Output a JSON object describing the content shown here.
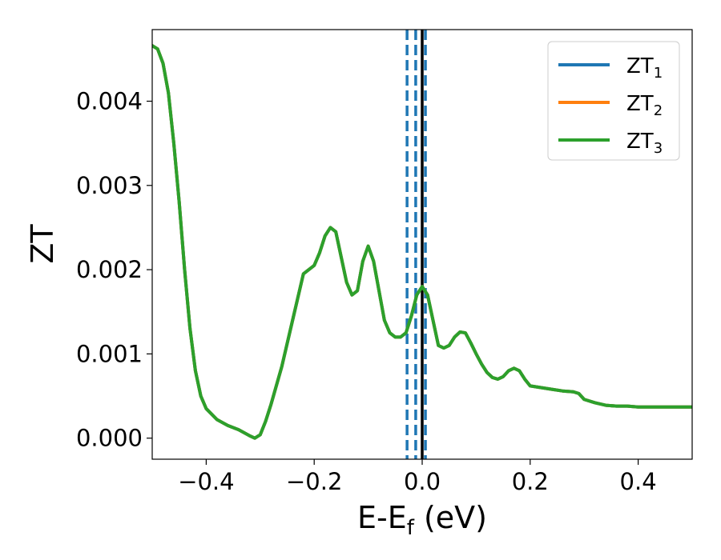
{
  "chart_data": {
    "type": "line",
    "title": "",
    "xlabel": {
      "main": "E-E",
      "sub": "f",
      "unit": " (eV)"
    },
    "ylabel": "ZT",
    "xlim": [
      -0.5,
      0.5
    ],
    "ylim": [
      -0.00025,
      0.00485
    ],
    "xticks": [
      -0.4,
      -0.2,
      0.0,
      0.2,
      0.4
    ],
    "xtick_labels": [
      "−0.4",
      "−0.2",
      "0.0",
      "0.2",
      "0.4"
    ],
    "yticks": [
      0.0,
      0.001,
      0.002,
      0.003,
      0.004
    ],
    "ytick_labels": [
      "0.000",
      "0.001",
      "0.002",
      "0.003",
      "0.004"
    ],
    "grid": false,
    "legend_position": "top-right",
    "x": [
      -0.5,
      -0.49,
      -0.48,
      -0.47,
      -0.46,
      -0.45,
      -0.44,
      -0.43,
      -0.42,
      -0.41,
      -0.4,
      -0.38,
      -0.36,
      -0.34,
      -0.32,
      -0.31,
      -0.3,
      -0.29,
      -0.28,
      -0.26,
      -0.24,
      -0.22,
      -0.21,
      -0.2,
      -0.19,
      -0.18,
      -0.17,
      -0.16,
      -0.15,
      -0.14,
      -0.13,
      -0.12,
      -0.11,
      -0.1,
      -0.09,
      -0.08,
      -0.07,
      -0.06,
      -0.05,
      -0.04,
      -0.03,
      -0.02,
      -0.01,
      0.0,
      0.01,
      0.02,
      0.03,
      0.04,
      0.05,
      0.06,
      0.07,
      0.08,
      0.09,
      0.1,
      0.11,
      0.12,
      0.13,
      0.14,
      0.15,
      0.16,
      0.17,
      0.18,
      0.19,
      0.2,
      0.22,
      0.24,
      0.26,
      0.28,
      0.29,
      0.3,
      0.32,
      0.34,
      0.36,
      0.38,
      0.4,
      0.42,
      0.44,
      0.46,
      0.48,
      0.5
    ],
    "series": [
      {
        "name": "ZT",
        "sub": "1",
        "color": "#1f77b4",
        "values": [
          0.00466,
          0.00462,
          0.00445,
          0.0041,
          0.0035,
          0.0028,
          0.002,
          0.0013,
          0.0008,
          0.0005,
          0.00035,
          0.00022,
          0.00015,
          0.0001,
          3e-05,
          0.0,
          4e-05,
          0.0002,
          0.0004,
          0.00085,
          0.0014,
          0.00195,
          0.002,
          0.00205,
          0.0022,
          0.0024,
          0.0025,
          0.00245,
          0.00215,
          0.00185,
          0.0017,
          0.00175,
          0.0021,
          0.00228,
          0.0021,
          0.00175,
          0.0014,
          0.00125,
          0.0012,
          0.0012,
          0.00125,
          0.00145,
          0.0017,
          0.0018,
          0.0017,
          0.0014,
          0.0011,
          0.00107,
          0.0011,
          0.0012,
          0.00126,
          0.00125,
          0.00113,
          0.001,
          0.00088,
          0.00078,
          0.00072,
          0.0007,
          0.00073,
          0.0008,
          0.00083,
          0.0008,
          0.0007,
          0.00062,
          0.0006,
          0.00058,
          0.00056,
          0.00055,
          0.00053,
          0.00046,
          0.00042,
          0.00039,
          0.00038,
          0.00038,
          0.00037,
          0.00037,
          0.00037,
          0.00037,
          0.00037,
          0.00037
        ]
      },
      {
        "name": "ZT",
        "sub": "2",
        "color": "#ff7f0e",
        "values": [
          0.00466,
          0.00462,
          0.00445,
          0.0041,
          0.0035,
          0.0028,
          0.002,
          0.0013,
          0.0008,
          0.0005,
          0.00035,
          0.00022,
          0.00015,
          0.0001,
          3e-05,
          0.0,
          4e-05,
          0.0002,
          0.0004,
          0.00085,
          0.0014,
          0.00195,
          0.002,
          0.00205,
          0.0022,
          0.0024,
          0.0025,
          0.00245,
          0.00215,
          0.00185,
          0.0017,
          0.00175,
          0.0021,
          0.00228,
          0.0021,
          0.00175,
          0.0014,
          0.00125,
          0.0012,
          0.0012,
          0.00125,
          0.00145,
          0.0017,
          0.0018,
          0.0017,
          0.0014,
          0.0011,
          0.00107,
          0.0011,
          0.0012,
          0.00126,
          0.00125,
          0.00113,
          0.001,
          0.00088,
          0.00078,
          0.00072,
          0.0007,
          0.00073,
          0.0008,
          0.00083,
          0.0008,
          0.0007,
          0.00062,
          0.0006,
          0.00058,
          0.00056,
          0.00055,
          0.00053,
          0.00046,
          0.00042,
          0.00039,
          0.00038,
          0.00038,
          0.00037,
          0.00037,
          0.00037,
          0.00037,
          0.00037,
          0.00037
        ]
      },
      {
        "name": "ZT",
        "sub": "3",
        "color": "#2ca02c",
        "values": [
          0.00466,
          0.00462,
          0.00445,
          0.0041,
          0.0035,
          0.0028,
          0.002,
          0.0013,
          0.0008,
          0.0005,
          0.00035,
          0.00022,
          0.00015,
          0.0001,
          3e-05,
          0.0,
          4e-05,
          0.0002,
          0.0004,
          0.00085,
          0.0014,
          0.00195,
          0.002,
          0.00205,
          0.0022,
          0.0024,
          0.0025,
          0.00245,
          0.00215,
          0.00185,
          0.0017,
          0.00175,
          0.0021,
          0.00228,
          0.0021,
          0.00175,
          0.0014,
          0.00125,
          0.0012,
          0.0012,
          0.00125,
          0.00145,
          0.0017,
          0.0018,
          0.0017,
          0.0014,
          0.0011,
          0.00107,
          0.0011,
          0.0012,
          0.00126,
          0.00125,
          0.00113,
          0.001,
          0.00088,
          0.00078,
          0.00072,
          0.0007,
          0.00073,
          0.0008,
          0.00083,
          0.0008,
          0.0007,
          0.00062,
          0.0006,
          0.00058,
          0.00056,
          0.00055,
          0.00053,
          0.00046,
          0.00042,
          0.00039,
          0.00038,
          0.00038,
          0.00037,
          0.00037,
          0.00037,
          0.00037,
          0.00037,
          0.00037
        ]
      }
    ],
    "vlines": [
      {
        "x": -0.028,
        "style": "dashed",
        "color": "#1f77b4"
      },
      {
        "x": -0.012,
        "style": "dashed",
        "color": "#1f77b4"
      },
      {
        "x": 0.006,
        "style": "dashed",
        "color": "#1f77b4"
      },
      {
        "x": 0.0,
        "style": "solid",
        "color": "#000000"
      }
    ]
  }
}
